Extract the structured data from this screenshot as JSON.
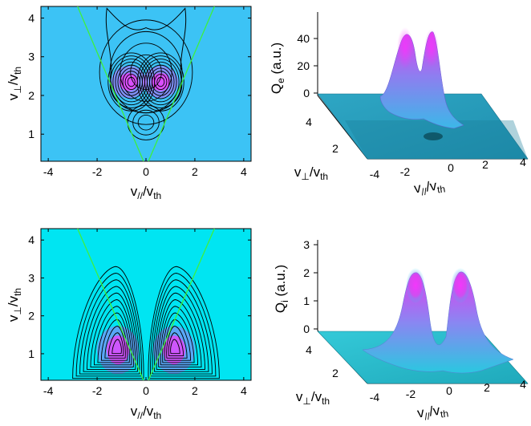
{
  "chart_data": [
    {
      "type": "contour",
      "panel": "top-left",
      "background": "#3cc3f5",
      "xlabel_main": "v",
      "xlabel_sub1": "//",
      "xlabel_mid": "/v",
      "xlabel_sub2": "th",
      "ylabel_main": "v",
      "ylabel_sub1": "⊥",
      "ylabel_mid": "/v",
      "ylabel_sub2": "th",
      "xlim": [
        -4.3,
        4.3
      ],
      "ylim": [
        0.3,
        4.3
      ],
      "xticks": [
        "-4",
        "-2",
        "0",
        "2",
        "4"
      ],
      "xtick_values": [
        -4,
        -2,
        0,
        2,
        4
      ],
      "yticks": [
        "1",
        "2",
        "3",
        "4"
      ],
      "ytick_values": [
        1,
        2,
        3,
        4
      ],
      "contours": [
        {
          "cx": 0,
          "cy": 2.6,
          "rx": 1.9,
          "ry": 1.35,
          "levels": 4
        },
        {
          "cx": -0.6,
          "cy": 2.35,
          "rx": 0.95,
          "ry": 0.75,
          "levels": 9
        },
        {
          "cx": 0.6,
          "cy": 2.35,
          "rx": 0.95,
          "ry": 0.75,
          "levels": 9
        },
        {
          "cx": 0,
          "cy": 1.3,
          "rx": 0.75,
          "ry": 0.45,
          "levels": 3
        }
      ],
      "peaks": [
        [
          -0.7,
          2.35
        ],
        [
          0.6,
          2.35
        ]
      ],
      "cone_lines": [
        [
          [
            -2.8,
            4.3
          ],
          [
            -0.1,
            0.3
          ]
        ],
        [
          [
            2.8,
            4.3
          ],
          [
            0.1,
            0.3
          ]
        ]
      ]
    },
    {
      "type": "surface",
      "panel": "top-right",
      "zlabel_main": "Q",
      "zlabel_sub": "e",
      "zlabel_rest": " (a.u.)",
      "xlabel_main": "v",
      "xlabel_sub1": "//",
      "xlabel_mid": "/v",
      "xlabel_sub2": "th",
      "ylabel_main": "v",
      "ylabel_sub1": "⊥",
      "ylabel_mid": "/v",
      "ylabel_sub2": "th",
      "zticks": [
        "0",
        "20",
        "40"
      ],
      "ztick_values": [
        0,
        20,
        40
      ],
      "xticks": [
        "-4",
        "-2",
        "0",
        "2",
        "4"
      ],
      "yticks": [
        "2",
        "4"
      ],
      "peak_values": [
        45,
        45
      ],
      "colormap": [
        "#1a8ea6",
        "#ff33ff"
      ]
    },
    {
      "type": "contour",
      "panel": "bottom-left",
      "background": "#00e5f2",
      "xlabel_main": "v",
      "xlabel_sub1": "//",
      "xlabel_mid": "/v",
      "xlabel_sub2": "th",
      "ylabel_main": "v",
      "ylabel_sub1": "⊥",
      "ylabel_mid": "/v",
      "ylabel_sub2": "th",
      "xlim": [
        -4.3,
        4.3
      ],
      "ylim": [
        0.3,
        4.3
      ],
      "xticks": [
        "-4",
        "-2",
        "0",
        "2",
        "4"
      ],
      "xtick_values": [
        -4,
        -2,
        0,
        2,
        4
      ],
      "yticks": [
        "1",
        "2",
        "3",
        "4"
      ],
      "ytick_values": [
        1,
        2,
        3,
        4
      ],
      "lobes": [
        {
          "cx": -1.15,
          "cy": 1.1,
          "levels": 12,
          "side": -1
        },
        {
          "cx": 1.15,
          "cy": 1.1,
          "levels": 12,
          "side": 1
        }
      ],
      "cone_lines": [
        [
          [
            -2.8,
            4.3
          ],
          [
            -0.1,
            0.3
          ]
        ],
        [
          [
            2.8,
            4.3
          ],
          [
            0.1,
            0.3
          ]
        ]
      ]
    },
    {
      "type": "surface",
      "panel": "bottom-right",
      "zlabel_main": "Q",
      "zlabel_sub": "i",
      "zlabel_rest": " (a.u.)",
      "xlabel_main": "v",
      "xlabel_sub1": "//",
      "xlabel_mid": "/v",
      "xlabel_sub2": "th",
      "ylabel_main": "v",
      "ylabel_sub1": "⊥",
      "ylabel_mid": "/v",
      "ylabel_sub2": "th",
      "zticks": [
        "0",
        "1",
        "2",
        "3"
      ],
      "ztick_values": [
        0,
        1,
        2,
        3
      ],
      "xticks": [
        "-4",
        "-2",
        "0",
        "2",
        "4"
      ],
      "yticks": [
        "2",
        "4"
      ],
      "peak_values": [
        2.2,
        2.1
      ],
      "colormap": [
        "#1aa6b6",
        "#ff33ff"
      ]
    }
  ]
}
